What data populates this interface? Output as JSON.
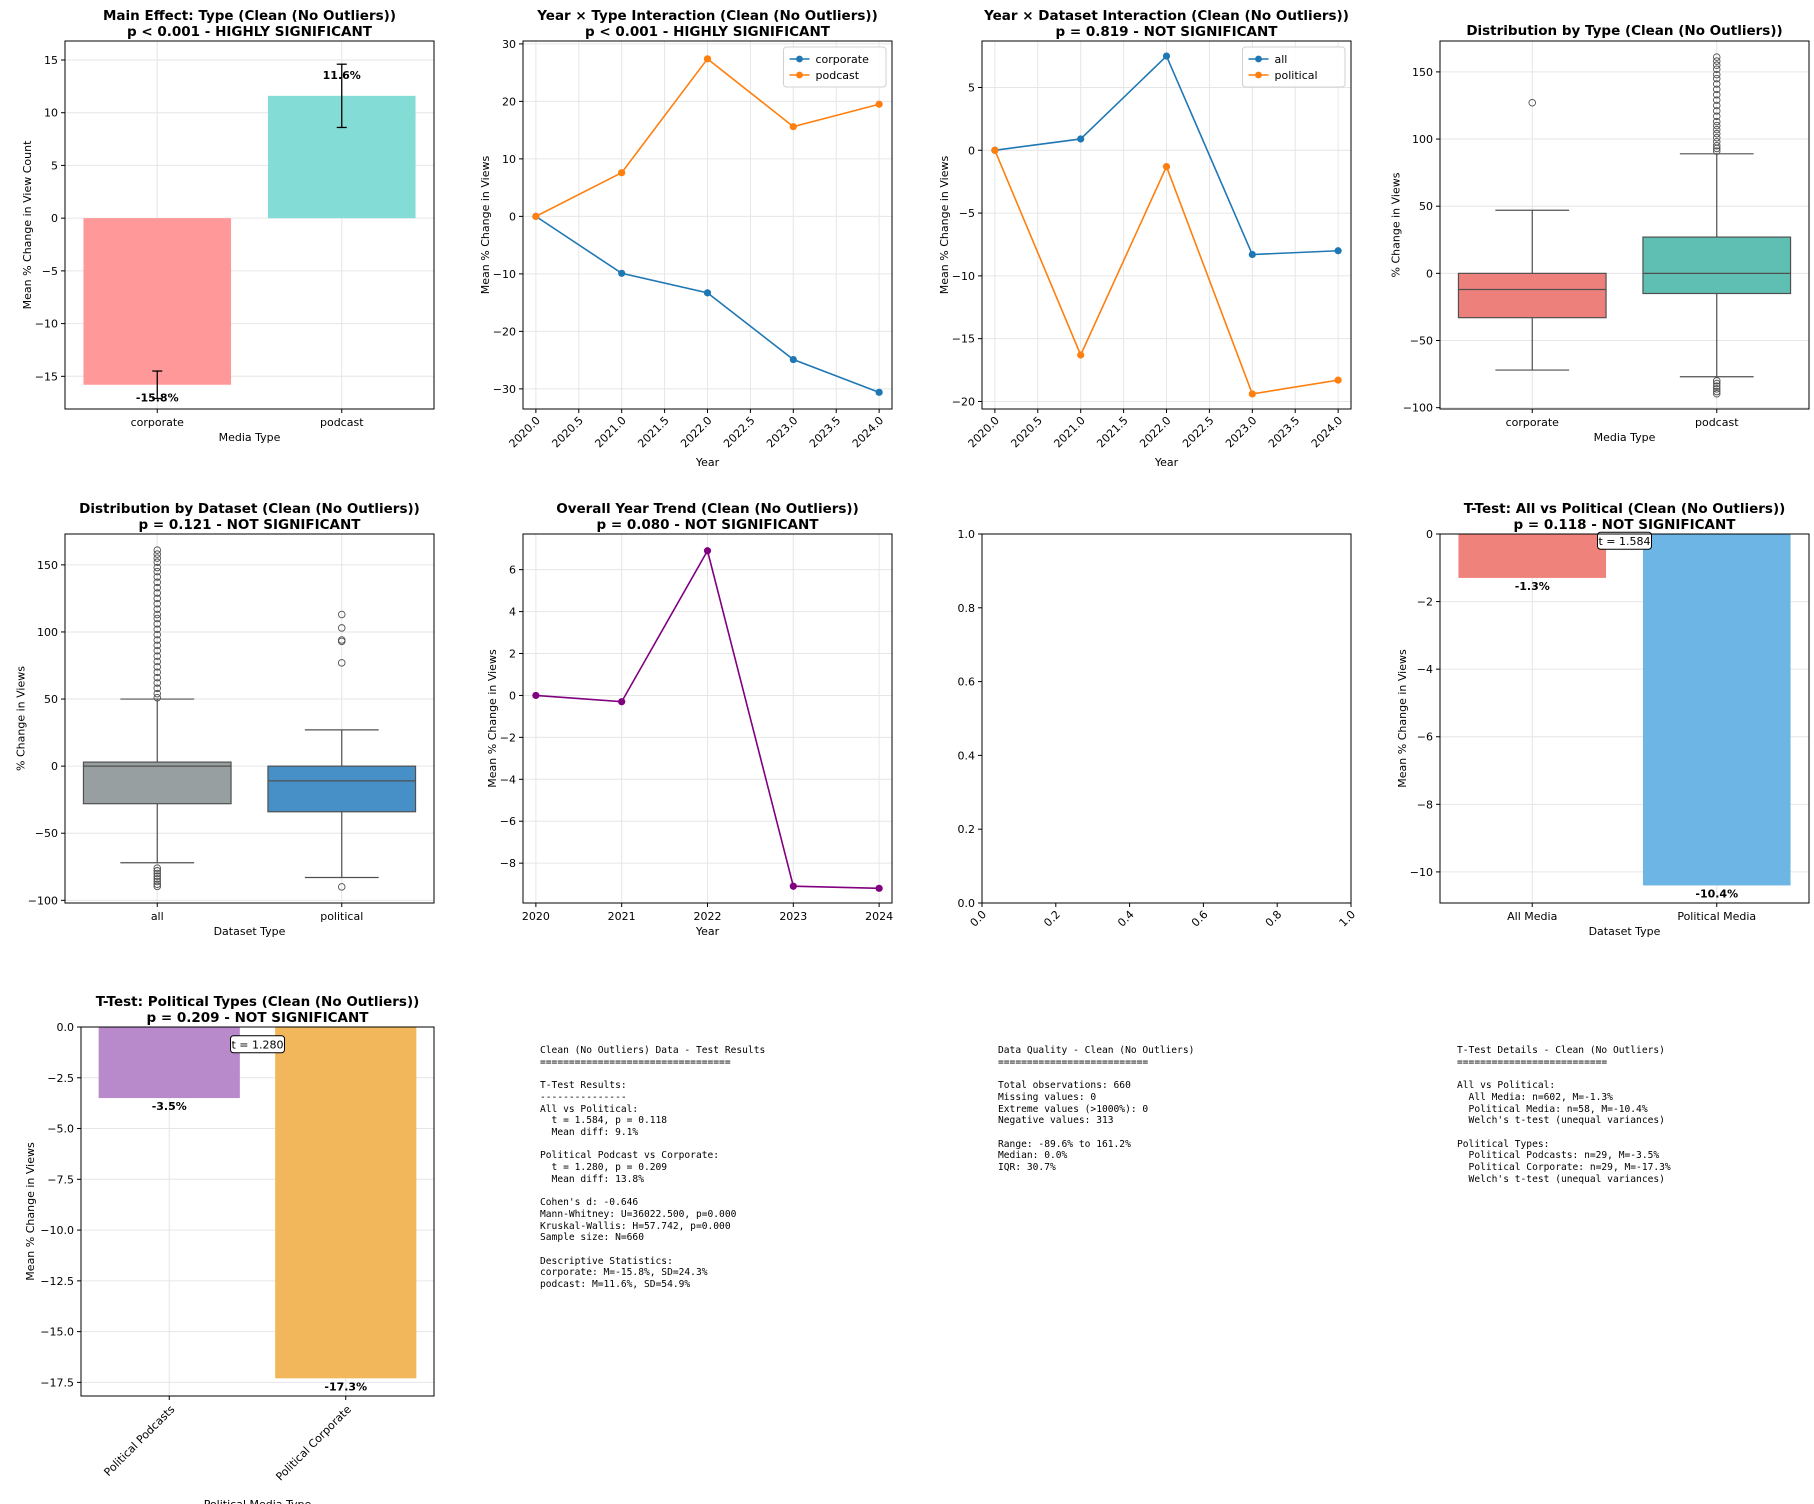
{
  "figure": {
    "width": 1814,
    "height": 1504
  },
  "chart_data": [
    {
      "id": "main_effect_type",
      "type": "bar",
      "title": [
        "Main Effect: Type (Clean (No Outliers))",
        "p < 0.001 - HIGHLY SIGNIFICANT"
      ],
      "xlabel": "Media Type",
      "ylabel": "Mean % Change in View Count",
      "categories": [
        "corporate",
        "podcast"
      ],
      "values": [
        -15.8,
        11.6
      ],
      "errors": [
        1.3,
        3.0
      ],
      "value_labels": [
        "-15.8%",
        "11.6%"
      ],
      "colors": [
        "#ff9999",
        "#84dcd6"
      ],
      "ylim": [
        -18.1,
        16.8
      ],
      "yticks": [
        -15,
        -10,
        -5,
        0,
        5,
        10,
        15
      ],
      "grid": true
    },
    {
      "id": "year_type_interaction",
      "type": "line",
      "title": [
        "Year × Type Interaction (Clean (No Outliers))",
        "p < 0.001 - HIGHLY SIGNIFICANT"
      ],
      "xlabel": "Year",
      "ylabel": "Mean % Change in Views",
      "x": [
        2020,
        2021,
        2022,
        2023,
        2024
      ],
      "series": [
        {
          "name": "corporate",
          "color": "#1f77b4",
          "values": [
            0,
            -9.9,
            -13.3,
            -24.9,
            -30.6
          ]
        },
        {
          "name": "podcast",
          "color": "#ff7f0e",
          "values": [
            0,
            7.6,
            27.4,
            15.6,
            19.5
          ]
        }
      ],
      "xlim": [
        2019.85,
        2024.15
      ],
      "ylim": [
        -33.5,
        30.5
      ],
      "xticks": [
        2020.0,
        2020.5,
        2021.0,
        2021.5,
        2022.0,
        2022.5,
        2023.0,
        2023.5,
        2024.0
      ],
      "xtick_labels": [
        "2020.0",
        "2020.5",
        "2021.0",
        "2021.5",
        "2022.0",
        "2022.5",
        "2023.0",
        "2023.5",
        "2024.0"
      ],
      "yticks": [
        -30,
        -20,
        -10,
        0,
        10,
        20,
        30
      ],
      "legend": "top-right",
      "grid": true
    },
    {
      "id": "year_dataset_interaction",
      "type": "line",
      "title": [
        "Year × Dataset Interaction (Clean (No Outliers))",
        "p = 0.819 - NOT SIGNIFICANT"
      ],
      "xlabel": "Year",
      "ylabel": "Mean % Change in Views",
      "x": [
        2020,
        2021,
        2022,
        2023,
        2024
      ],
      "series": [
        {
          "name": "all",
          "color": "#1f77b4",
          "values": [
            0,
            0.9,
            7.5,
            -8.3,
            -8.0
          ]
        },
        {
          "name": "political",
          "color": "#ff7f0e",
          "values": [
            0,
            -16.3,
            -1.3,
            -19.4,
            -18.3
          ]
        }
      ],
      "xlim": [
        2019.85,
        2024.15
      ],
      "ylim": [
        -20.6,
        8.7
      ],
      "xticks": [
        2020.0,
        2020.5,
        2021.0,
        2021.5,
        2022.0,
        2022.5,
        2023.0,
        2023.5,
        2024.0
      ],
      "xtick_labels": [
        "2020.0",
        "2020.5",
        "2021.0",
        "2021.5",
        "2022.0",
        "2022.5",
        "2023.0",
        "2023.5",
        "2024.0"
      ],
      "yticks": [
        -20,
        -15,
        -10,
        -5,
        0,
        5
      ],
      "legend": "top-right",
      "grid": true
    },
    {
      "id": "distribution_by_type",
      "type": "box",
      "title": [
        "Distribution by Type (Clean (No Outliers))"
      ],
      "xlabel": "Media Type",
      "ylabel": "% Change in Views",
      "categories": [
        "corporate",
        "podcast"
      ],
      "boxes": [
        {
          "q1": -33,
          "median": -12,
          "q3": 0,
          "whisker_low": -72,
          "whisker_high": 47,
          "fliers": [
            127
          ],
          "color": "#ee807b"
        },
        {
          "q1": -15,
          "median": 0,
          "q3": 27,
          "whisker_low": -77,
          "whisker_high": 89,
          "fliers": [
            161,
            158,
            155,
            152,
            148,
            145,
            141,
            137,
            133,
            129,
            125,
            121,
            117,
            113,
            110,
            107,
            104,
            101,
            98,
            95,
            93,
            91,
            -80,
            -82,
            -84,
            -86,
            -88,
            -89.6
          ],
          "color": "#5fbfb3"
        }
      ],
      "ylim": [
        -101,
        173
      ],
      "yticks": [
        -100,
        -50,
        0,
        50,
        100,
        150
      ],
      "grid": true
    },
    {
      "id": "distribution_by_dataset",
      "type": "box",
      "title": [
        "Distribution by Dataset (Clean (No Outliers))",
        "p = 0.121 - NOT SIGNIFICANT"
      ],
      "xlabel": "Dataset Type",
      "ylabel": "% Change in Views",
      "categories": [
        "all",
        "political"
      ],
      "boxes": [
        {
          "q1": -28,
          "median": 0,
          "q3": 3,
          "whisker_low": -72,
          "whisker_high": 50,
          "fliers": [
            161,
            158,
            155,
            152,
            148,
            145,
            141,
            137,
            133,
            129,
            125,
            121,
            117,
            113,
            110,
            106,
            102,
            98,
            94,
            90,
            86,
            82,
            78,
            74,
            70,
            66,
            62,
            58,
            54,
            51,
            -76,
            -78,
            -80,
            -82,
            -84,
            -86,
            -88,
            -89.6
          ],
          "color": "#979fa1"
        },
        {
          "q1": -34,
          "median": -11,
          "q3": 0,
          "whisker_low": -83,
          "whisker_high": 27,
          "fliers": [
            113,
            103,
            94,
            93,
            77,
            -90
          ],
          "color": "#4690c7"
        }
      ],
      "ylim": [
        -102,
        173
      ],
      "yticks": [
        -100,
        -50,
        0,
        50,
        100,
        150
      ],
      "grid": true
    },
    {
      "id": "overall_year_trend",
      "type": "line",
      "title": [
        "Overall Year Trend (Clean (No Outliers))",
        "p = 0.080 - NOT SIGNIFICANT"
      ],
      "xlabel": "Year",
      "ylabel": "Mean % Change in Views",
      "x": [
        2020,
        2021,
        2022,
        2023,
        2024
      ],
      "series": [
        {
          "name": "overall",
          "color": "#800080",
          "values": [
            0,
            -0.3,
            6.9,
            -9.1,
            -9.2
          ]
        }
      ],
      "xlim": [
        2019.85,
        2024.15
      ],
      "ylim": [
        -9.9,
        7.7
      ],
      "xticks": [
        2020,
        2021,
        2022,
        2023,
        2024
      ],
      "xtick_labels": [
        "2020",
        "2021",
        "2022",
        "2023",
        "2024"
      ],
      "yticks": [
        -8,
        -6,
        -4,
        -2,
        0,
        2,
        4,
        6
      ],
      "grid": true
    },
    {
      "id": "empty_axes",
      "type": "empty",
      "title": [],
      "xlabel": "",
      "ylabel": "",
      "xlim": [
        0,
        1
      ],
      "ylim": [
        0,
        1
      ],
      "xticks": [
        0.0,
        0.2,
        0.4,
        0.6,
        0.8,
        1.0
      ],
      "xtick_labels": [
        "0.0",
        "0.2",
        "0.4",
        "0.6",
        "0.8",
        "1.0"
      ],
      "yticks": [
        0.0,
        0.2,
        0.4,
        0.6,
        0.8,
        1.0
      ],
      "ytick_labels": [
        "0.0",
        "0.2",
        "0.4",
        "0.6",
        "0.8",
        "1.0"
      ],
      "grid": false
    },
    {
      "id": "ttest_all_vs_political",
      "type": "bar",
      "title": [
        "T-Test: All vs Political (Clean (No Outliers))",
        "p = 0.118 - NOT SIGNIFICANT"
      ],
      "xlabel": "Dataset Type",
      "ylabel": "Mean % Change in Views",
      "categories": [
        "All Media",
        "Political Media"
      ],
      "values": [
        -1.3,
        -10.4
      ],
      "value_labels": [
        "-1.3%",
        "-10.4%"
      ],
      "colors": [
        "#ef837c",
        "#6cb5e4"
      ],
      "annotation": "t = 1.584",
      "annotation_at": [
        0.5,
        -0.2
      ],
      "ylim": [
        -10.92,
        0
      ],
      "yticks": [
        -10,
        -8,
        -6,
        -4,
        -2,
        0
      ],
      "grid": true
    },
    {
      "id": "ttest_political_types",
      "type": "bar",
      "title": [
        "T-Test: Political Types (Clean (No Outliers))",
        "p = 0.209 - NOT SIGNIFICANT"
      ],
      "xlabel": "Political Media Type",
      "ylabel": "Mean % Change in Views",
      "categories": [
        "Political Podcasts",
        "Political Corporate"
      ],
      "values": [
        -3.5,
        -17.3
      ],
      "value_labels": [
        "-3.5%",
        "-17.3%"
      ],
      "colors": [
        "#b98acb",
        "#f2b75a"
      ],
      "annotation": "t = 1.280",
      "annotation_at": [
        0.5,
        -0.85
      ],
      "rotate_xticks": true,
      "ylim": [
        -18.17,
        0
      ],
      "yticks": [
        -17.5,
        -15.0,
        -12.5,
        -10.0,
        -7.5,
        -5.0,
        -2.5,
        0.0
      ],
      "ytick_labels": [
        "−17.5",
        "−15.0",
        "−12.5",
        "−10.0",
        "−7.5",
        "−5.0",
        "−2.5",
        "0.0"
      ],
      "grid": true
    }
  ],
  "text_panels": {
    "test_results": [
      "Clean (No Outliers) Data - Test Results",
      "=================================",
      "",
      "T-Test Results:",
      "---------------",
      "All vs Political:",
      "  t = 1.584, p = 0.118",
      "  Mean diff: 9.1%",
      "",
      "Political Podcast vs Corporate:",
      "  t = 1.280, p = 0.209",
      "  Mean diff: 13.8%",
      "",
      "Cohen's d: -0.646",
      "Mann-Whitney: U=36022.500, p=0.000",
      "Kruskal-Wallis: H=57.742, p=0.000",
      "Sample size: N=660",
      "",
      "Descriptive Statistics:",
      "corporate: M=-15.8%, SD=24.3%",
      "podcast: M=11.6%, SD=54.9%"
    ],
    "data_quality": [
      "Data Quality - Clean (No Outliers)",
      "==========================",
      "",
      "Total observations: 660",
      "Missing values: 0",
      "Extreme values (>1000%): 0",
      "Negative values: 313",
      "",
      "Range: -89.6% to 161.2%",
      "Median: 0.0%",
      "IQR: 30.7%"
    ],
    "ttest_details": [
      "T-Test Details - Clean (No Outliers)",
      "==========================",
      "",
      "All vs Political:",
      "  All Media: n=602, M=-1.3%",
      "  Political Media: n=58, M=-10.4%",
      "  Welch's t-test (unequal variances)",
      "",
      "Political Types:",
      "  Political Podcasts: n=29, M=-3.5%",
      "  Political Corporate: n=29, M=-17.3%",
      "  Welch's t-test (unequal variances)"
    ]
  }
}
